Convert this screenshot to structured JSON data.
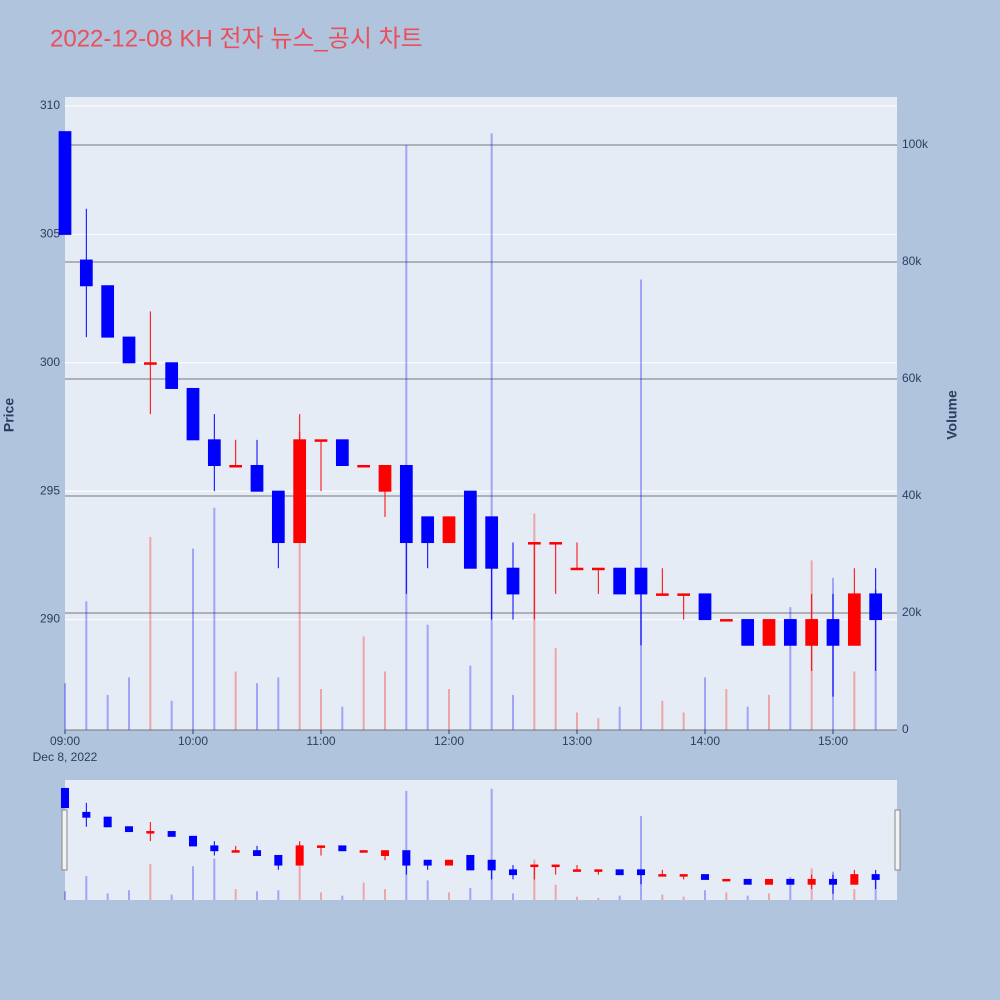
{
  "chart_data": {
    "type": "candlestick",
    "title": "2022-12-08 KH 전자 뉴스_공시 차트",
    "x": [
      "2022-12-08 09:00",
      "2022-12-08 09:10",
      "2022-12-08 09:20",
      "2022-12-08 09:30",
      "2022-12-08 09:40",
      "2022-12-08 09:50",
      "2022-12-08 10:00",
      "2022-12-08 10:10",
      "2022-12-08 10:20",
      "2022-12-08 10:30",
      "2022-12-08 10:40",
      "2022-12-08 10:50",
      "2022-12-08 11:00",
      "2022-12-08 11:10",
      "2022-12-08 11:20",
      "2022-12-08 11:30",
      "2022-12-08 11:40",
      "2022-12-08 11:50",
      "2022-12-08 12:00",
      "2022-12-08 12:10",
      "2022-12-08 12:20",
      "2022-12-08 12:30",
      "2022-12-08 12:40",
      "2022-12-08 12:50",
      "2022-12-08 13:00",
      "2022-12-08 13:10",
      "2022-12-08 13:20",
      "2022-12-08 13:30",
      "2022-12-08 13:40",
      "2022-12-08 13:50",
      "2022-12-08 14:00",
      "2022-12-08 14:10",
      "2022-12-08 14:20",
      "2022-12-08 14:30",
      "2022-12-08 14:40",
      "2022-12-08 14:50",
      "2022-12-08 15:00",
      "2022-12-08 15:10",
      "2022-12-08 15:20"
    ],
    "open": [
      309,
      304,
      303,
      301,
      300,
      300,
      299,
      297,
      296,
      296,
      295,
      293,
      297,
      297,
      296,
      295,
      296,
      294,
      293,
      295,
      294,
      292,
      293,
      293,
      292,
      292,
      292,
      292,
      291,
      291,
      291,
      290,
      290,
      289,
      290,
      289,
      290,
      289,
      291
    ],
    "high": [
      309,
      306,
      303,
      301,
      302,
      300,
      299,
      298,
      297,
      297,
      295,
      298,
      297,
      297,
      296,
      296,
      296,
      294,
      294,
      295,
      294,
      293,
      293,
      293,
      293,
      292,
      292,
      292,
      292,
      291,
      291,
      290,
      290,
      290,
      290,
      291,
      291,
      292,
      292
    ],
    "low": [
      305,
      301,
      301,
      300,
      298,
      299,
      297,
      295,
      296,
      295,
      292,
      293,
      295,
      296,
      296,
      294,
      291,
      292,
      293,
      292,
      290,
      290,
      290,
      291,
      292,
      291,
      291,
      289,
      291,
      290,
      290,
      290,
      289,
      289,
      289,
      288,
      287,
      289,
      288
    ],
    "close": [
      305,
      303,
      301,
      300,
      300,
      299,
      297,
      296,
      296,
      295,
      293,
      297,
      297,
      296,
      296,
      296,
      293,
      293,
      294,
      292,
      292,
      291,
      293,
      293,
      292,
      292,
      291,
      291,
      291,
      291,
      290,
      290,
      289,
      290,
      289,
      290,
      289,
      291,
      290
    ],
    "volume": [
      8000,
      22000,
      6000,
      9000,
      33000,
      5000,
      31000,
      38000,
      10000,
      8000,
      9000,
      51000,
      7000,
      4000,
      16000,
      10000,
      100000,
      18000,
      7000,
      11000,
      102000,
      6000,
      37000,
      14000,
      3000,
      2000,
      4000,
      77000,
      5000,
      3000,
      9000,
      7000,
      4000,
      6000,
      21000,
      29000,
      26000,
      10000,
      24000
    ],
    "increasing_color": "#ff0000",
    "decreasing_color": "#0000ff",
    "y_label": "Price",
    "y2_label": "Volume",
    "ylim": [
      285.7,
      310.35
    ],
    "yticks": [
      290,
      295,
      300,
      305,
      310
    ],
    "y2lim": [
      0,
      108200
    ],
    "y2ticks": [
      0,
      {
        "value": 20000,
        "label": "20k"
      },
      {
        "value": 40000,
        "label": "40k"
      },
      {
        "value": 60000,
        "label": "60k"
      },
      {
        "value": 80000,
        "label": "80k"
      },
      {
        "value": 100000,
        "label": "100k"
      }
    ],
    "xlim": [
      "2022-12-08 09:00",
      "2022-12-08 15:30"
    ],
    "xticks": [
      {
        "value": "2022-12-08 09:00",
        "label": "09:00"
      },
      {
        "value": "2022-12-08 10:00",
        "label": "10:00"
      },
      {
        "value": "2022-12-08 11:00",
        "label": "11:00"
      },
      {
        "value": "2022-12-08 12:00",
        "label": "12:00"
      },
      {
        "value": "2022-12-08 13:00",
        "label": "13:00"
      },
      {
        "value": "2022-12-08 14:00",
        "label": "14:00"
      },
      {
        "value": "2022-12-08 15:00",
        "label": "15:00"
      }
    ],
    "x_date_label": "Dec 8, 2022",
    "rangeslider": true
  }
}
